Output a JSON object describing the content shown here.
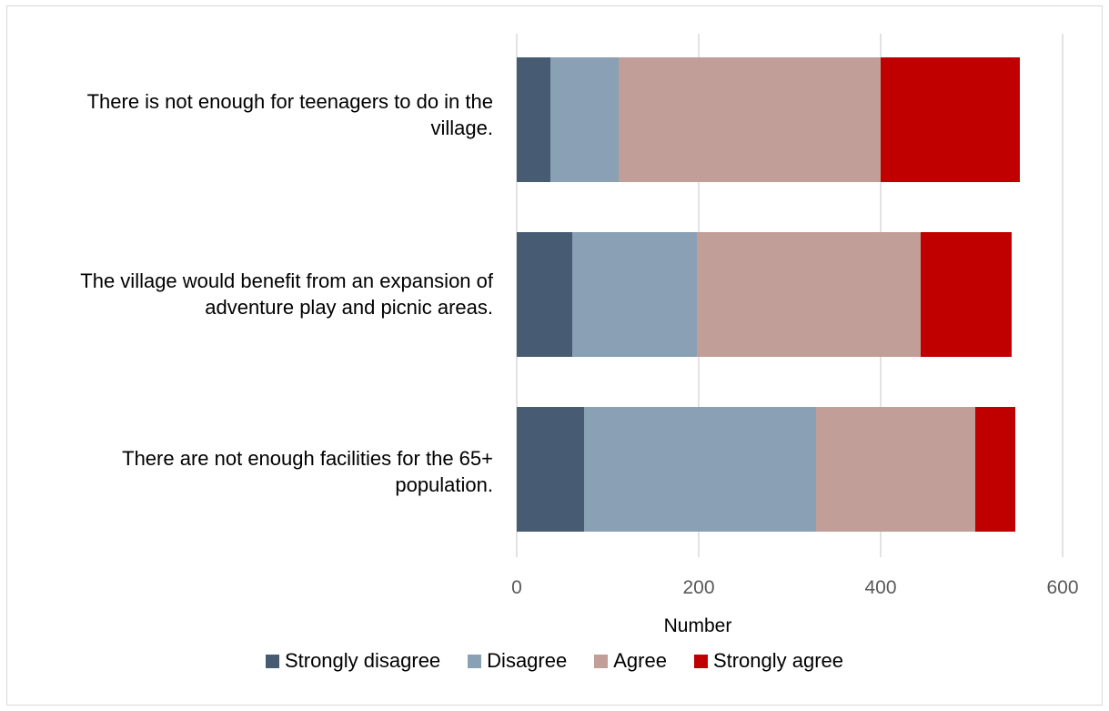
{
  "chart_data": {
    "type": "bar",
    "orientation": "horizontal",
    "stacked": true,
    "categories": [
      "There is not enough for teenagers to do in the village.",
      "The village would benefit from an expansion of adventure play and picnic areas.",
      "There are not enough facilities for the 65+ population."
    ],
    "series": [
      {
        "name": "Strongly disagree",
        "color": "#475b73",
        "values": [
          37,
          61,
          74
        ]
      },
      {
        "name": "Disagree",
        "color": "#8aa0b5",
        "values": [
          75,
          137,
          255
        ]
      },
      {
        "name": "Agree",
        "color": "#c19e97",
        "values": [
          288,
          246,
          175
        ]
      },
      {
        "name": "Strongly agree",
        "color": "#c00000",
        "values": [
          153,
          100,
          44
        ]
      }
    ],
    "xlabel": "Number",
    "xlim": [
      0,
      600
    ],
    "xticks": [
      "0",
      "200",
      "400",
      "600"
    ],
    "grid": true,
    "legend_position": "bottom"
  }
}
